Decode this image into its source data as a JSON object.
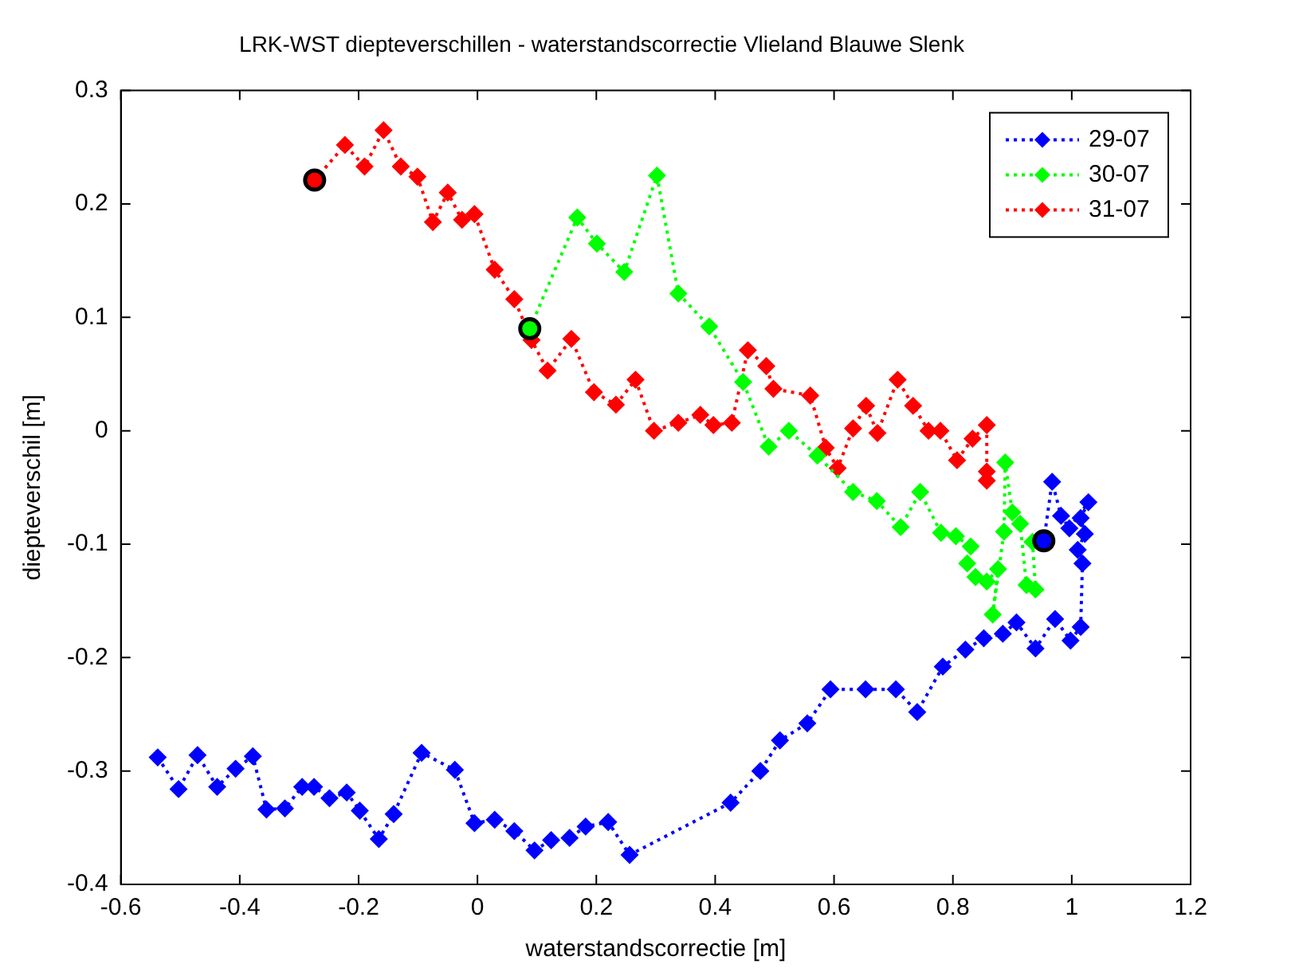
{
  "chart_data": {
    "type": "line",
    "title": "LRK-WST diepteverschillen - waterstandscorrectie Vlieland Blauwe Slenk",
    "xlabel": "waterstandscorrectie [m]",
    "ylabel": "diepteverschil [m]",
    "xlim": [
      -0.6,
      1.2
    ],
    "xticks": [
      -0.6,
      -0.4,
      -0.2,
      0,
      0.2,
      0.4,
      0.6,
      0.8,
      1,
      1.2
    ],
    "ylim": [
      -0.4,
      0.3
    ],
    "yticks": [
      -0.4,
      -0.3,
      -0.2,
      -0.1,
      0,
      0.1,
      0.2,
      0.3
    ],
    "grid": false,
    "legend": "top right",
    "marker": "diamond",
    "line_style": "dotted",
    "series": [
      {
        "name": "29-07",
        "color": "#0000ff",
        "x": [
          -0.538,
          -0.503,
          -0.471,
          -0.438,
          -0.407,
          -0.378,
          -0.355,
          -0.324,
          -0.295,
          -0.275,
          -0.249,
          -0.22,
          -0.198,
          -0.166,
          -0.141,
          -0.094,
          -0.038,
          -0.005,
          0.029,
          0.062,
          0.096,
          0.124,
          0.155,
          0.182,
          0.22,
          0.256,
          0.426,
          0.476,
          0.509,
          0.555,
          0.594,
          0.653,
          0.704,
          0.74,
          0.783,
          0.821,
          0.852,
          0.884,
          0.907,
          0.939,
          0.972,
          0.998,
          1.015,
          1.018,
          1.01,
          1.022,
          1.015,
          1.028,
          0.996,
          0.982,
          0.967,
          0.953
        ],
        "values": [
          -0.288,
          -0.316,
          -0.286,
          -0.314,
          -0.298,
          -0.287,
          -0.334,
          -0.333,
          -0.314,
          -0.314,
          -0.324,
          -0.319,
          -0.335,
          -0.36,
          -0.338,
          -0.284,
          -0.299,
          -0.346,
          -0.343,
          -0.353,
          -0.37,
          -0.361,
          -0.359,
          -0.349,
          -0.345,
          -0.374,
          -0.328,
          -0.3,
          -0.273,
          -0.258,
          -0.228,
          -0.228,
          -0.228,
          -0.248,
          -0.208,
          -0.193,
          -0.183,
          -0.179,
          -0.169,
          -0.192,
          -0.166,
          -0.185,
          -0.173,
          -0.117,
          -0.105,
          -0.091,
          -0.077,
          -0.063,
          -0.086,
          -0.075,
          -0.045,
          -0.097
        ]
      },
      {
        "name": "30-07",
        "color": "#00ff00",
        "x": [
          0.088,
          0.168,
          0.201,
          0.247,
          0.302,
          0.338,
          0.39,
          0.447,
          0.49,
          0.524,
          0.572,
          0.632,
          0.672,
          0.712,
          0.745,
          0.78,
          0.805,
          0.83,
          0.824,
          0.838,
          0.857,
          0.876,
          0.867,
          0.886,
          0.888,
          0.9,
          0.913,
          0.924,
          0.939,
          0.934
        ],
        "values": [
          0.09,
          0.188,
          0.165,
          0.14,
          0.225,
          0.121,
          0.092,
          0.043,
          -0.014,
          0.0,
          -0.022,
          -0.054,
          -0.062,
          -0.085,
          -0.054,
          -0.09,
          -0.093,
          -0.102,
          -0.117,
          -0.129,
          -0.133,
          -0.122,
          -0.162,
          -0.089,
          -0.028,
          -0.072,
          -0.082,
          -0.136,
          -0.14,
          -0.098
        ]
      },
      {
        "name": "31-07",
        "color": "#ff0000",
        "x": [
          -0.274,
          -0.223,
          -0.19,
          -0.158,
          -0.129,
          -0.101,
          -0.075,
          -0.05,
          -0.026,
          -0.005,
          0.029,
          0.062,
          0.091,
          0.118,
          0.158,
          0.196,
          0.233,
          0.266,
          0.297,
          0.338,
          0.375,
          0.397,
          0.428,
          0.455,
          0.486,
          0.498,
          0.56,
          0.586,
          0.606,
          0.632,
          0.654,
          0.673,
          0.707,
          0.733,
          0.759,
          0.779,
          0.807,
          0.833,
          0.857,
          0.857,
          0.857
        ],
        "values": [
          0.221,
          0.252,
          0.233,
          0.265,
          0.233,
          0.224,
          0.184,
          0.21,
          0.186,
          0.191,
          0.142,
          0.116,
          0.08,
          0.053,
          0.081,
          0.034,
          0.023,
          0.045,
          0.0,
          0.007,
          0.014,
          0.005,
          0.007,
          0.071,
          0.057,
          0.037,
          0.031,
          -0.015,
          -0.033,
          0.002,
          0.022,
          -0.002,
          0.045,
          0.022,
          0.0,
          0.0,
          -0.026,
          -0.007,
          0.005,
          -0.036,
          -0.044
        ]
      },
      {
        "type": "scatter",
        "marker": "circle",
        "color": "#000000",
        "colors": [
          "#ff0000",
          "#00ff00",
          "#0000ff"
        ],
        "x": [
          -0.274,
          0.088,
          0.953
        ],
        "values": [
          0.221,
          0.09,
          -0.097
        ]
      }
    ]
  }
}
